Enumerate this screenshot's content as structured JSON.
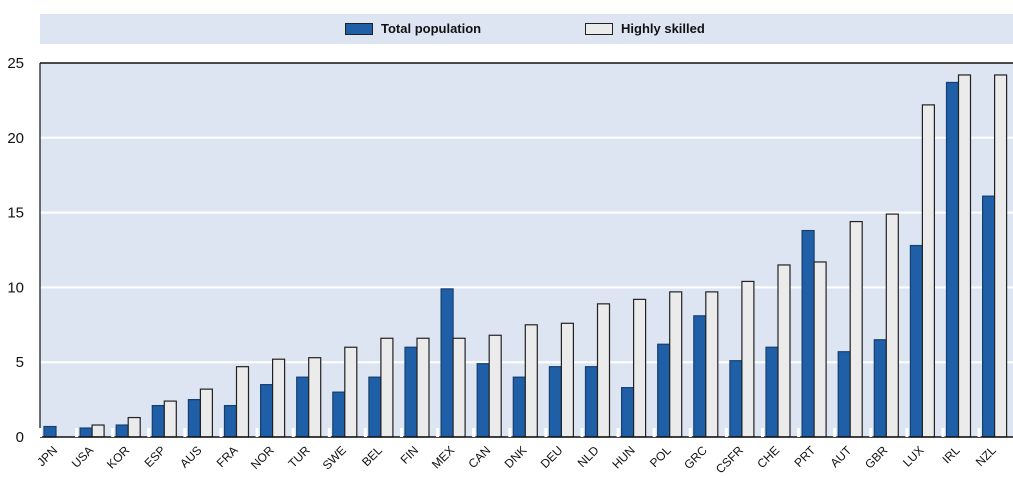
{
  "chart_data": {
    "type": "bar",
    "categories": [
      "JPN",
      "USA",
      "KOR",
      "ESP",
      "AUS",
      "FRA",
      "NOR",
      "TUR",
      "SWE",
      "BEL",
      "FIN",
      "MEX",
      "CAN",
      "DNK",
      "DEU",
      "NLD",
      "HUN",
      "POL",
      "GRC",
      "CSFR",
      "CHE",
      "PRT",
      "AUT",
      "GBR",
      "LUX",
      "IRL",
      "NZL"
    ],
    "series": [
      {
        "name": "Total population",
        "color": "#1f5fa8",
        "values": [
          0.7,
          0.6,
          0.8,
          2.1,
          2.5,
          2.1,
          3.5,
          4.0,
          3.0,
          4.0,
          6.0,
          9.9,
          4.9,
          4.0,
          4.7,
          4.7,
          3.3,
          6.2,
          8.1,
          5.1,
          6.0,
          13.8,
          5.7,
          6.5,
          12.8,
          23.7,
          16.1
        ]
      },
      {
        "name": "Highly skilled",
        "color": "#ebebeb",
        "values": [
          0,
          0.8,
          1.3,
          2.4,
          3.2,
          4.7,
          5.2,
          5.3,
          6.0,
          6.6,
          6.6,
          6.6,
          6.8,
          7.5,
          7.6,
          8.9,
          9.2,
          9.7,
          9.7,
          10.4,
          11.5,
          11.7,
          14.4,
          14.9,
          22.2,
          24.2,
          24.2
        ]
      }
    ],
    "ylim": [
      0,
      25
    ],
    "yticks": [
      0,
      5,
      10,
      15,
      20,
      25
    ],
    "grid": true,
    "legend": "top"
  },
  "legend": {
    "total_label": "Total population",
    "skilled_label": "Highly skilled"
  }
}
